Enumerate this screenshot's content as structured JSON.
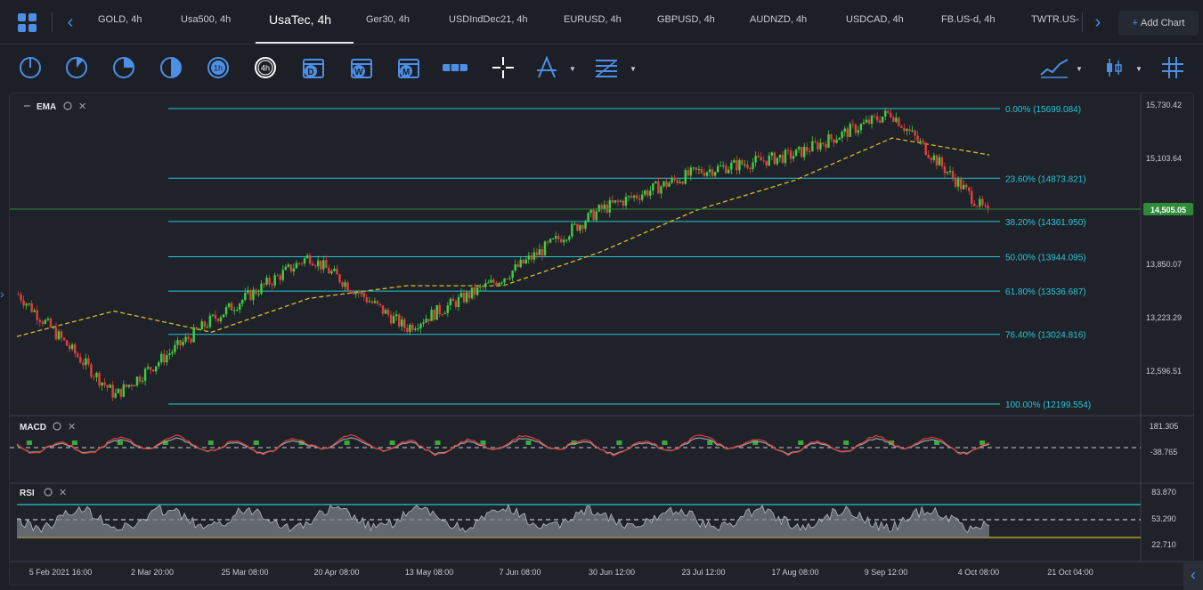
{
  "tabs": {
    "items": [
      {
        "label": "GOLD, 4h"
      },
      {
        "label": "Usa500, 4h"
      },
      {
        "label": "UsaTec, 4h"
      },
      {
        "label": "Ger30, 4h"
      },
      {
        "label": "USDIndDec21, 4h"
      },
      {
        "label": "EURUSD, 4h"
      },
      {
        "label": "GBPUSD, 4h"
      },
      {
        "label": "AUDNZD, 4h"
      },
      {
        "label": "USDCAD, 4h"
      },
      {
        "label": "FB.US-d, 4h"
      },
      {
        "label": "TWTR.US-"
      }
    ],
    "add_chart": "Add Chart"
  },
  "toolbar": {
    "timeframes": [
      "",
      "",
      "",
      "",
      "1h",
      "4h",
      "D",
      "W",
      "M"
    ]
  },
  "colors": {
    "accent": "#4d8fe6",
    "up": "#3ecf3e",
    "down": "#e0403a",
    "fib": "#27c4d6",
    "ema": "#d9b92b",
    "price_badge": "#2e8b3a"
  },
  "chart": {
    "indicator_main": "EMA",
    "indicator_macd": "MACD",
    "indicator_rsi": "RSI",
    "price_axis": [
      "15,730.42",
      "15,103.64",
      "14,505.05",
      "13,850.07",
      "13,223.29",
      "12,596.51"
    ],
    "current_price": "14,505.05",
    "macd_axis": [
      "181.305",
      "-38.765"
    ],
    "rsi_axis": [
      "83.870",
      "53.290",
      "22.710"
    ],
    "time_axis": [
      "5 Feb 2021 16:00",
      "2 Mar 20:00",
      "25 Mar 08:00",
      "20 Apr 08:00",
      "13 May 08:00",
      "7 Jun 08:00",
      "30 Jun 12:00",
      "23 Jul 12:00",
      "17 Aug 08:00",
      "9 Sep 12:00",
      "4 Oct 08:00",
      "21 Oct 04:00"
    ],
    "fib_levels": [
      {
        "label": "0.00% (15699.084)",
        "price": 15699.084
      },
      {
        "label": "23.60% (14873.821)",
        "price": 14873.821
      },
      {
        "label": "38.20% (14361.950)",
        "price": 14361.95
      },
      {
        "label": "50.00% (13944.095)",
        "price": 13944.095
      },
      {
        "label": "61.80% (13536.687)",
        "price": 13536.687
      },
      {
        "label": "76.40% (13024.816)",
        "price": 13024.816
      },
      {
        "label": "100.00% (12199.554)",
        "price": 12199.554
      }
    ]
  },
  "chart_data": {
    "type": "line",
    "title": "UsaTec, 4h",
    "series": [
      {
        "name": "UsaTec",
        "x": [
          "5 Feb 2021 16:00",
          "2 Mar 20:00",
          "25 Mar 08:00",
          "20 Apr 08:00",
          "13 May 08:00",
          "7 Jun 08:00",
          "30 Jun 12:00",
          "23 Jul 12:00",
          "17 Aug 08:00",
          "9 Sep 12:00",
          "4 Oct 08:00"
        ],
        "values": [
          13500,
          12300,
          13200,
          13950,
          13100,
          13700,
          14500,
          14950,
          15150,
          15650,
          14450
        ]
      },
      {
        "name": "EMA",
        "x": [
          "5 Feb 2021 16:00",
          "2 Mar 20:00",
          "25 Mar 08:00",
          "20 Apr 08:00",
          "13 May 08:00",
          "7 Jun 08:00",
          "30 Jun 12:00",
          "23 Jul 12:00",
          "17 Aug 08:00",
          "9 Sep 12:00",
          "4 Oct 08:00"
        ],
        "values": [
          13000,
          13300,
          13050,
          13450,
          13600,
          13600,
          14000,
          14500,
          14850,
          15350,
          15150
        ]
      }
    ],
    "ylim": [
      12199.554,
      15730.42
    ]
  }
}
